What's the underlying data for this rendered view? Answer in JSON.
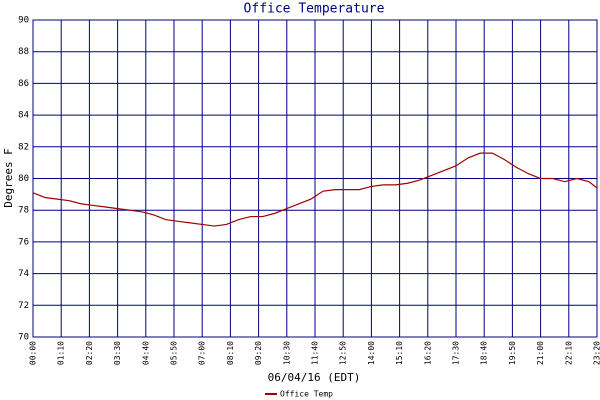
{
  "chart_data": {
    "type": "line",
    "title": "Office Temperature",
    "xlabel": "06/04/16 (EDT)",
    "ylabel": "Degrees F",
    "x": [
      0,
      30,
      60,
      90,
      120,
      150,
      180,
      210,
      240,
      270,
      300,
      330,
      360,
      390,
      420,
      450,
      480,
      510,
      540,
      570,
      600,
      630,
      660,
      690,
      720,
      750,
      780,
      810,
      840,
      870,
      900,
      930,
      960,
      990,
      1020,
      1050,
      1080,
      1110,
      1140,
      1170,
      1200,
      1230,
      1260,
      1290,
      1320,
      1350,
      1380,
      1400
    ],
    "series": [
      {
        "name": "Office Temp",
        "color": "#a00000",
        "values": [
          79.1,
          78.8,
          78.7,
          78.6,
          78.4,
          78.3,
          78.2,
          78.1,
          78.0,
          77.9,
          77.7,
          77.4,
          77.3,
          77.2,
          77.1,
          77.0,
          77.1,
          77.4,
          77.6,
          77.6,
          77.8,
          78.1,
          78.4,
          78.7,
          79.2,
          79.3,
          79.3,
          79.3,
          79.5,
          79.6,
          79.6,
          79.7,
          79.9,
          80.2,
          80.5,
          80.8,
          81.3,
          81.6,
          81.6,
          81.2,
          80.7,
          80.3,
          80.0,
          80.0,
          79.8,
          80.0,
          79.8,
          79.4
        ]
      }
    ],
    "xlim": [
      0,
      1400
    ],
    "ylim": [
      70,
      90
    ],
    "xticks": [
      {
        "value": 0,
        "label": "00:00"
      },
      {
        "value": 70,
        "label": "01:10"
      },
      {
        "value": 140,
        "label": "02:20"
      },
      {
        "value": 210,
        "label": "03:30"
      },
      {
        "value": 280,
        "label": "04:40"
      },
      {
        "value": 350,
        "label": "05:50"
      },
      {
        "value": 420,
        "label": "07:00"
      },
      {
        "value": 490,
        "label": "08:10"
      },
      {
        "value": 560,
        "label": "09:20"
      },
      {
        "value": 630,
        "label": "10:30"
      },
      {
        "value": 700,
        "label": "11:40"
      },
      {
        "value": 770,
        "label": "12:50"
      },
      {
        "value": 840,
        "label": "14:00"
      },
      {
        "value": 910,
        "label": "15:10"
      },
      {
        "value": 980,
        "label": "16:20"
      },
      {
        "value": 1050,
        "label": "17:30"
      },
      {
        "value": 1120,
        "label": "18:40"
      },
      {
        "value": 1190,
        "label": "19:50"
      },
      {
        "value": 1260,
        "label": "21:00"
      },
      {
        "value": 1330,
        "label": "22:10"
      },
      {
        "value": 1400,
        "label": "23:20"
      }
    ],
    "yticks": [
      70,
      72,
      74,
      76,
      78,
      80,
      82,
      84,
      86,
      88,
      90
    ],
    "grid": true,
    "grid_color": "#000080",
    "legend": "bottom"
  }
}
